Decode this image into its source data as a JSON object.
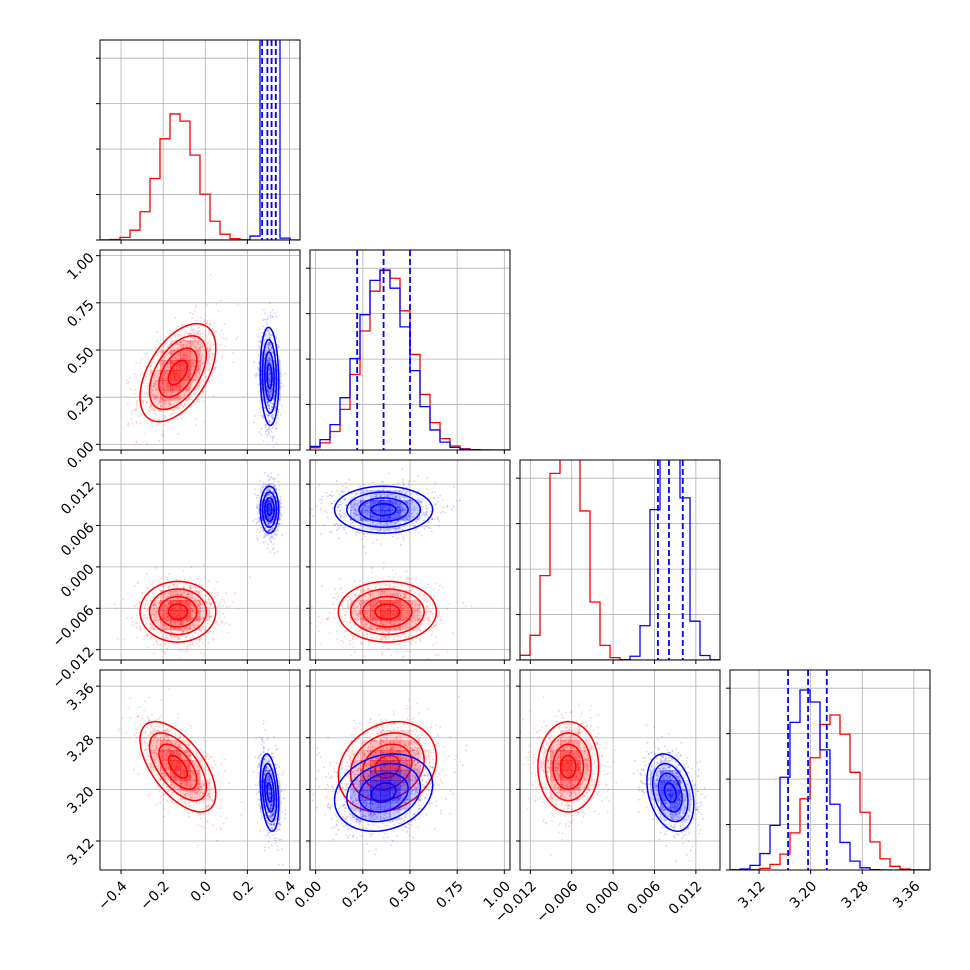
{
  "colors": {
    "red": "#ff0000",
    "blue": "#0000ff",
    "grid": "#b0b0b0",
    "frame": "#000000"
  },
  "chart_data": {
    "type": "corner",
    "parameters": [
      {
        "range": [
          -0.5,
          0.45
        ],
        "ticks": [
          -0.4,
          -0.2,
          0.0,
          0.2,
          0.4
        ],
        "tick_labels": [
          "−0.4",
          "−0.2",
          "0.0",
          "0.2",
          "0.4"
        ]
      },
      {
        "range": [
          -0.03,
          1.03
        ],
        "ticks": [
          0.0,
          0.25,
          0.5,
          0.75,
          1.0
        ],
        "tick_labels": [
          "0.00",
          "0.25",
          "0.50",
          "0.75",
          "1.00"
        ]
      },
      {
        "range": [
          -0.0135,
          0.0155
        ],
        "ticks": [
          -0.012,
          -0.006,
          0.0,
          0.006,
          0.012
        ],
        "tick_labels": [
          "−0.012",
          "−0.006",
          "0.000",
          "0.006",
          "0.012"
        ]
      },
      {
        "range": [
          3.075,
          3.385
        ],
        "ticks": [
          3.12,
          3.2,
          3.28,
          3.36
        ],
        "tick_labels": [
          "3.12",
          "3.20",
          "3.28",
          "3.36"
        ]
      }
    ],
    "series": [
      {
        "color": "red",
        "mean": [
          -0.13,
          0.38,
          -0.0065,
          3.235
        ],
        "std": [
          0.09,
          0.13,
          0.0022,
          0.035
        ],
        "corr": {
          "0-1": 0.5,
          "0-2": 0.0,
          "0-3": -0.6,
          "1-2": 0.0,
          "1-3": 0.2,
          "2-3": 0.0
        },
        "quantiles": null
      },
      {
        "color": "blue",
        "mean": [
          0.305,
          0.36,
          0.0083,
          3.195
        ],
        "std": [
          0.022,
          0.13,
          0.0017,
          0.03
        ],
        "corr": {
          "0-1": -0.1,
          "0-2": 0.0,
          "0-3": -0.3,
          "1-2": 0.0,
          "1-3": 0.2,
          "2-3": -0.3
        },
        "quantiles": [
          [
            0.27,
            0.295,
            0.315,
            0.335
          ],
          [
            0.22,
            0.36,
            0.5
          ],
          [
            0.0065,
            0.0081,
            0.0101
          ],
          [
            3.165,
            3.196,
            3.225
          ]
        ]
      }
    ],
    "grid": true
  }
}
